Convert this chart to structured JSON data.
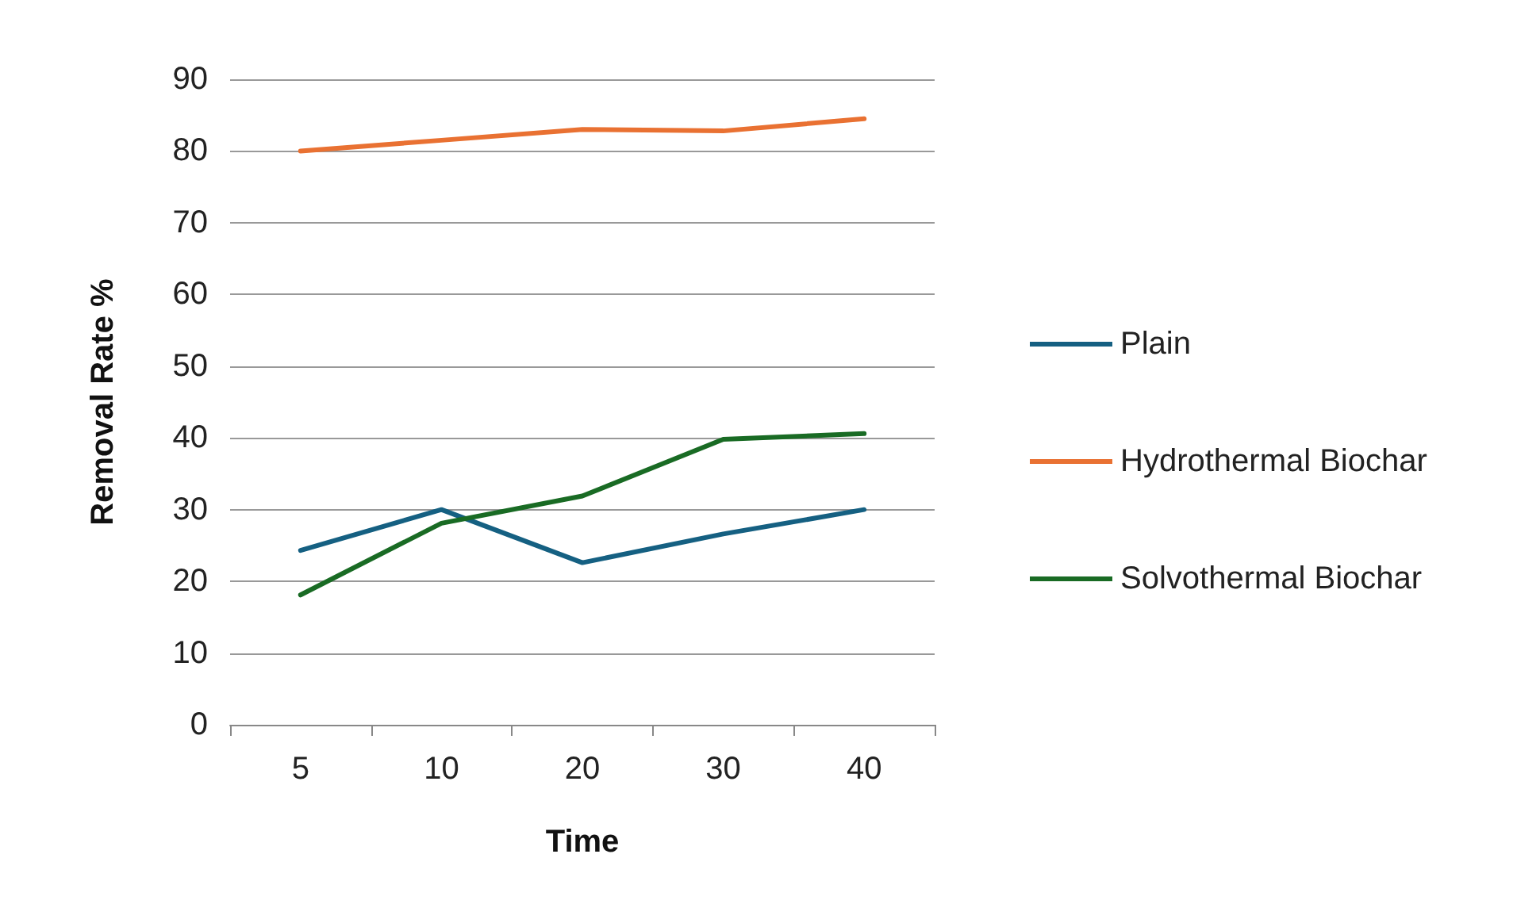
{
  "chart_data": {
    "type": "line",
    "xlabel": "Time",
    "ylabel": "Removal Rate %",
    "categories": [
      "5",
      "10",
      "20",
      "30",
      "40"
    ],
    "ylim": [
      0,
      90
    ],
    "yticks": [
      0,
      10,
      20,
      30,
      40,
      50,
      60,
      70,
      80,
      90
    ],
    "grid": "y",
    "legend": "right",
    "marker": "none",
    "line_style": "solid",
    "series": [
      {
        "name": "Plain",
        "color": "#156082",
        "values": [
          24.3,
          30.0,
          22.6,
          26.6,
          30.0
        ]
      },
      {
        "name": "Hydrothermal Biochar",
        "color": "#e97132",
        "values": [
          80.0,
          81.5,
          83.0,
          82.8,
          84.5
        ]
      },
      {
        "name": "Solvothermal Biochar",
        "color": "#196b24",
        "values": [
          18.1,
          28.1,
          31.9,
          39.8,
          40.6
        ]
      }
    ]
  }
}
